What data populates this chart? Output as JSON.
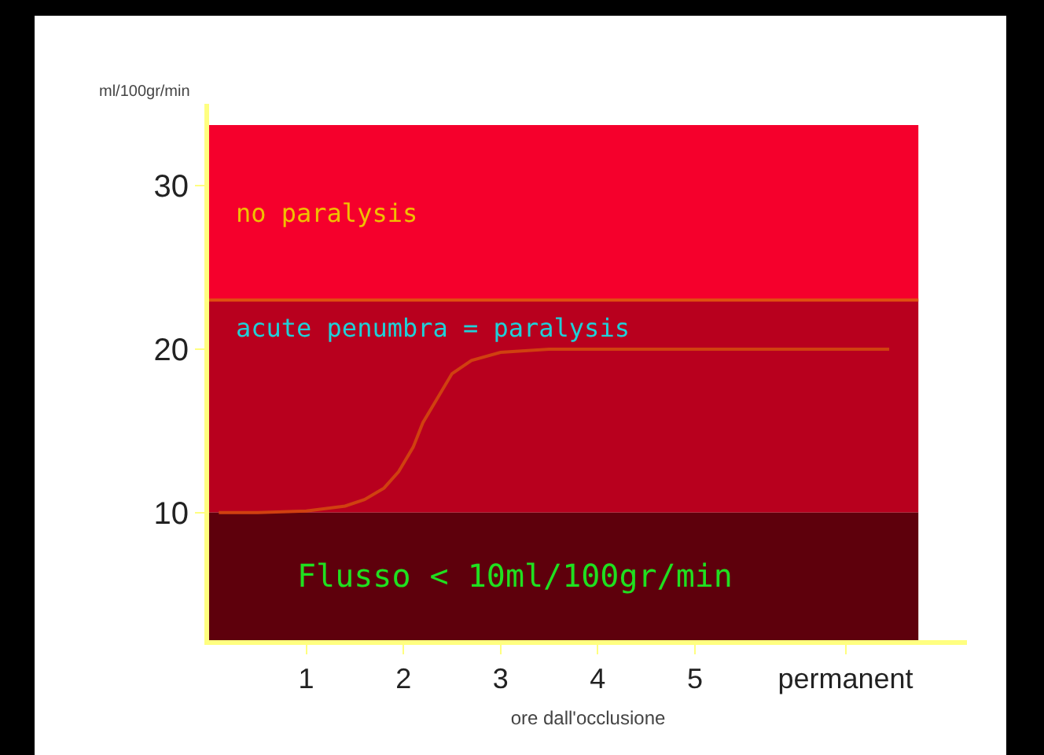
{
  "chart_data": {
    "type": "line",
    "xlabel": "ore dall'occlusione",
    "ylabel": "ml/100gr/min",
    "x": [
      0.1,
      0.5,
      1,
      1.4,
      1.6,
      1.8,
      1.95,
      2.1,
      2.2,
      2.35,
      2.5,
      2.7,
      3,
      3.5,
      4,
      5,
      6,
      7
    ],
    "series": [
      {
        "color": "#d04010",
        "values": [
          10,
          10,
          10.1,
          10.4,
          10.8,
          11.5,
          12.5,
          14,
          15.5,
          17,
          18.5,
          19.3,
          19.8,
          20,
          20,
          20,
          20,
          20
        ]
      }
    ],
    "xlim": [
      0,
      7.8
    ],
    "ylim": [
      2.2,
      35
    ],
    "xticks": [
      1,
      2,
      3,
      4,
      5,
      {
        "value": 6.55,
        "label": "permanent"
      }
    ],
    "yticks": [
      10,
      20,
      30
    ],
    "bands": [
      {
        "axis": "y",
        "from": 23,
        "to": 33.7,
        "label": "no paralysis",
        "color": "#f5002c"
      },
      {
        "axis": "y",
        "from": 10,
        "to": 23,
        "label": "acute penumbra = paralysis",
        "color": "#b8001e"
      },
      {
        "axis": "y",
        "from": 2.2,
        "to": 10,
        "label": "Flusso < 10ml/100gr/min",
        "color": "#5e000c"
      }
    ],
    "ref_lines": [
      {
        "axis": "y",
        "value": 23,
        "color": "#e05010"
      }
    ],
    "marker": "none",
    "line_style": "solid"
  }
}
